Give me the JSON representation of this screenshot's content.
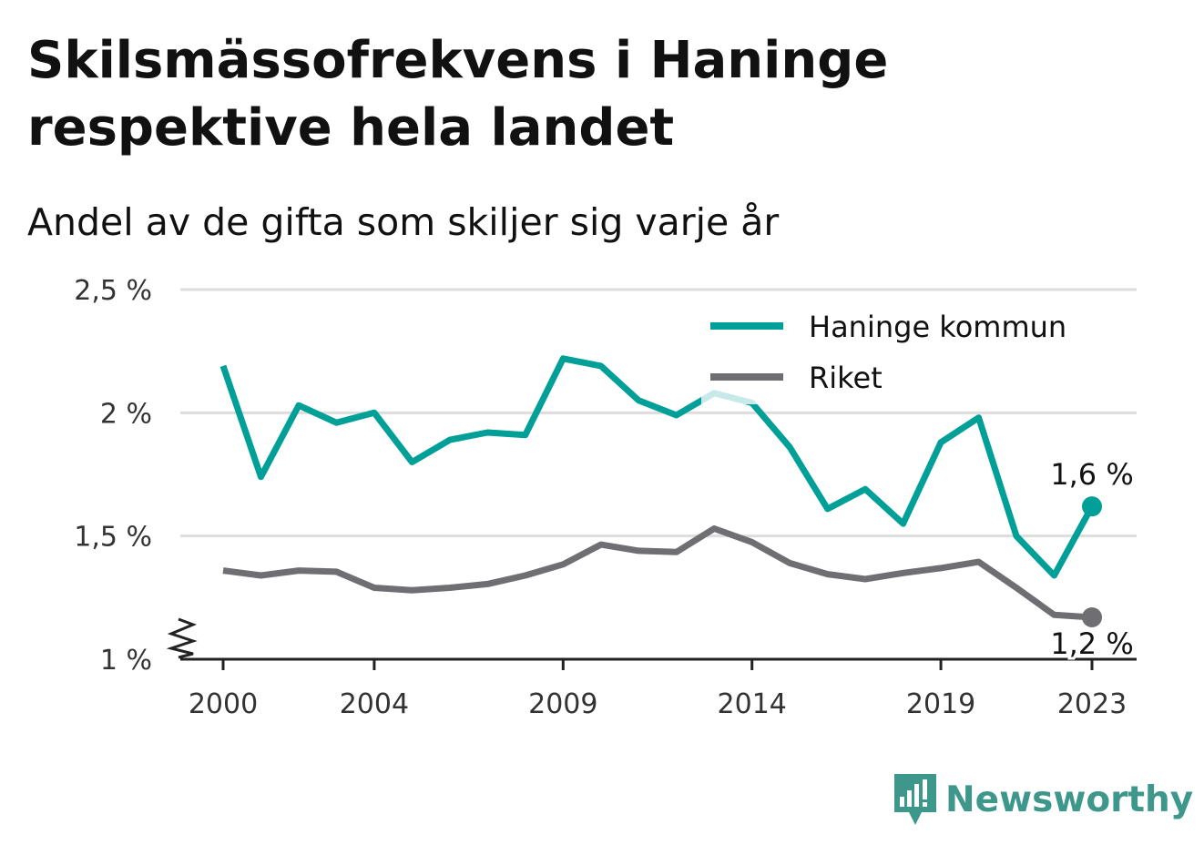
{
  "title": "Skilsmässofrekvens i Haninge respektive hela landet",
  "subtitle": "Andel av de gifta som skiljer sig varje år",
  "brand": "Newsworthy",
  "colors": {
    "haninge": "#009f97",
    "riket": "#6e6e73",
    "grid": "#dddddd",
    "brand": "#3e978b"
  },
  "chart_data": {
    "type": "line",
    "x": [
      2000,
      2001,
      2002,
      2003,
      2004,
      2005,
      2006,
      2007,
      2008,
      2009,
      2010,
      2011,
      2012,
      2013,
      2014,
      2015,
      2016,
      2017,
      2018,
      2019,
      2020,
      2021,
      2022,
      2023
    ],
    "x_ticks": [
      "2000",
      "2004",
      "2009",
      "2014",
      "2019",
      "2023"
    ],
    "y_ticks": [
      "2,5 %",
      "2 %",
      "1,5 %",
      "1 %"
    ],
    "ylim": [
      1,
      2.5
    ],
    "y_axis_break": true,
    "grid": true,
    "legend_position": "top-right",
    "series": [
      {
        "name": "Haninge kommun",
        "color": "#009f97",
        "values": [
          2.19,
          1.74,
          2.03,
          1.96,
          2.0,
          1.8,
          1.89,
          1.92,
          1.91,
          2.22,
          2.19,
          2.05,
          1.99,
          2.08,
          2.04,
          1.86,
          1.61,
          1.69,
          1.55,
          1.88,
          1.98,
          1.5,
          1.34,
          1.62
        ],
        "end_label": "1,6 %"
      },
      {
        "name": "Riket",
        "color": "#6e6e73",
        "values": [
          1.36,
          1.34,
          1.36,
          1.355,
          1.29,
          1.28,
          1.29,
          1.305,
          1.34,
          1.385,
          1.465,
          1.44,
          1.435,
          1.53,
          1.475,
          1.39,
          1.345,
          1.325,
          1.35,
          1.37,
          1.395,
          1.29,
          1.18,
          1.17
        ],
        "end_label": "1,2 %"
      }
    ]
  }
}
